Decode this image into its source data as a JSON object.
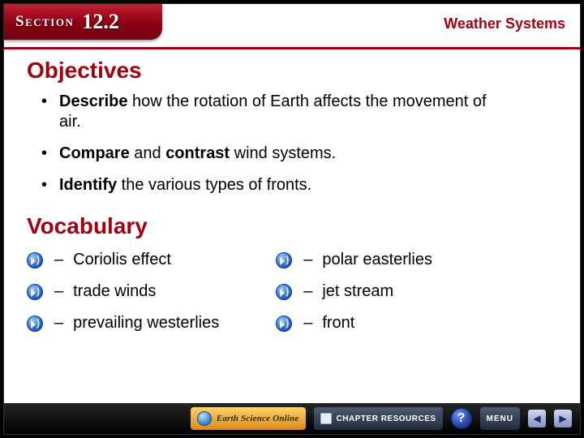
{
  "header": {
    "section_word": "Section",
    "section_number": "12.2",
    "topic": "Weather Systems"
  },
  "headings": {
    "objectives": "Objectives",
    "vocabulary": "Vocabulary"
  },
  "objectives": [
    {
      "keyword": "Describe",
      "rest": " how the rotation of Earth affects the movement of air."
    },
    {
      "keyword": "Compare",
      "mid": " and ",
      "keyword2": "contrast",
      "rest": " wind systems."
    },
    {
      "keyword": "Identify",
      "rest": " the various types of fronts."
    }
  ],
  "vocabulary": {
    "col1": [
      "Coriolis effect",
      "trade winds",
      "prevailing westerlies"
    ],
    "col2": [
      "polar easterlies",
      "jet stream",
      "front"
    ]
  },
  "footer": {
    "online_label": "Earth Science Online",
    "chapter_label": "CHAPTER RESOURCES",
    "menu_label": "MENU",
    "help_label": "?",
    "prev_glyph": "◀",
    "next_glyph": "▶"
  },
  "colors": {
    "accent": "#a00010",
    "text": "#000000",
    "background": "#ffffff"
  }
}
